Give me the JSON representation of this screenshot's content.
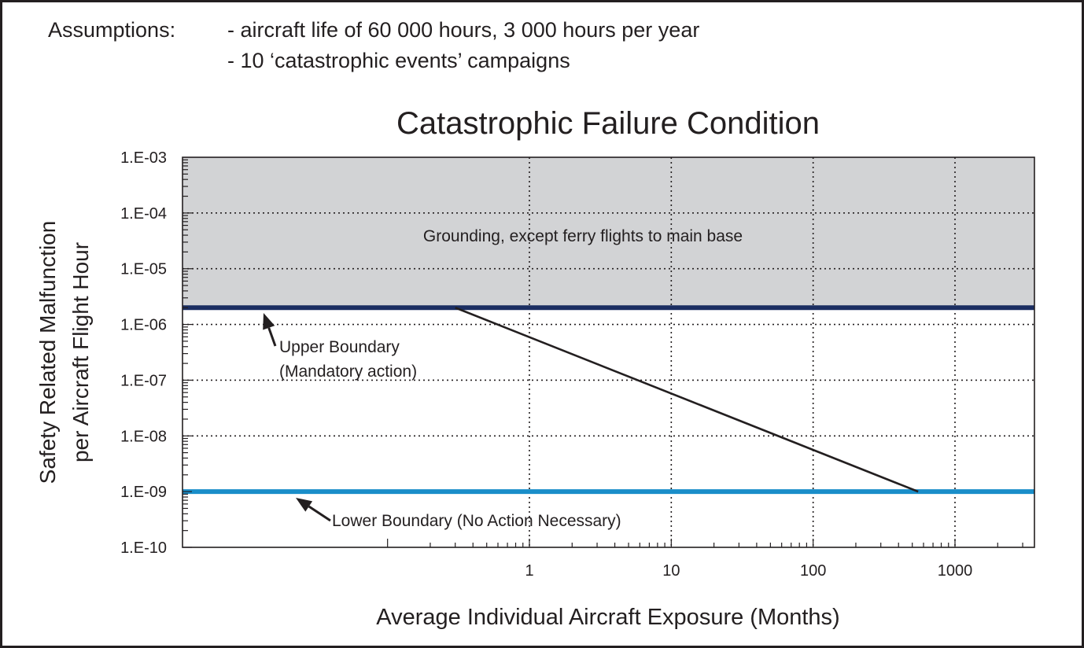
{
  "assumptions": {
    "label": "Assumptions:",
    "lines": [
      "- aircraft life of 60 000 hours, 3 000 hours per year",
      "- 10 ‘catastrophic events’ campaigns"
    ]
  },
  "colors": {
    "grounding_fill": "#d2d3d5",
    "upper_boundary": "#1b2e62",
    "lower_boundary": "#1a8ec9",
    "line": "#231f20",
    "text": "#231f20"
  },
  "chart_data": {
    "type": "line",
    "title": "Catastrophic Failure Condition",
    "xlabel": "Average Individual Aircraft Exposure (Months)",
    "ylabel": [
      "Safety Related Malfunction",
      "per Aircraft Flight Hour"
    ],
    "x_scale": "log",
    "y_scale": "log",
    "xlim": [
      0.1,
      1000
    ],
    "ylim": [
      1e-10,
      0.001
    ],
    "grid": true,
    "x_ticks": [
      {
        "value": 1,
        "label": "1"
      },
      {
        "value": 10,
        "label": "10"
      },
      {
        "value": 100,
        "label": "100"
      },
      {
        "value": 1000,
        "label": "1000"
      }
    ],
    "y_ticks": [
      {
        "value": 0.001,
        "label": "1.E-03"
      },
      {
        "value": 0.0001,
        "label": "1.E-04"
      },
      {
        "value": 1e-05,
        "label": "1.E-05"
      },
      {
        "value": 1e-06,
        "label": "1.E-06"
      },
      {
        "value": 1e-07,
        "label": "1.E-07"
      },
      {
        "value": 1e-08,
        "label": "1.E-08"
      },
      {
        "value": 1e-09,
        "label": "1.E-09"
      },
      {
        "value": 1e-10,
        "label": "1.E-10"
      }
    ],
    "regions": [
      {
        "label": "Grounding, except ferry flights to main base",
        "y_from": 2e-06,
        "y_to": 0.001
      }
    ],
    "boundaries": [
      {
        "name": "upper",
        "value": 2e-06,
        "label_lines": [
          "Upper Boundary",
          "(Mandatory action)"
        ]
      },
      {
        "name": "lower",
        "value": 1e-09,
        "label_lines": [
          "Lower Boundary (No Action Necessary)"
        ]
      }
    ],
    "series": [
      {
        "x": [
          0.3,
          550
        ],
        "y": [
          2e-06,
          1e-09
        ]
      }
    ]
  }
}
